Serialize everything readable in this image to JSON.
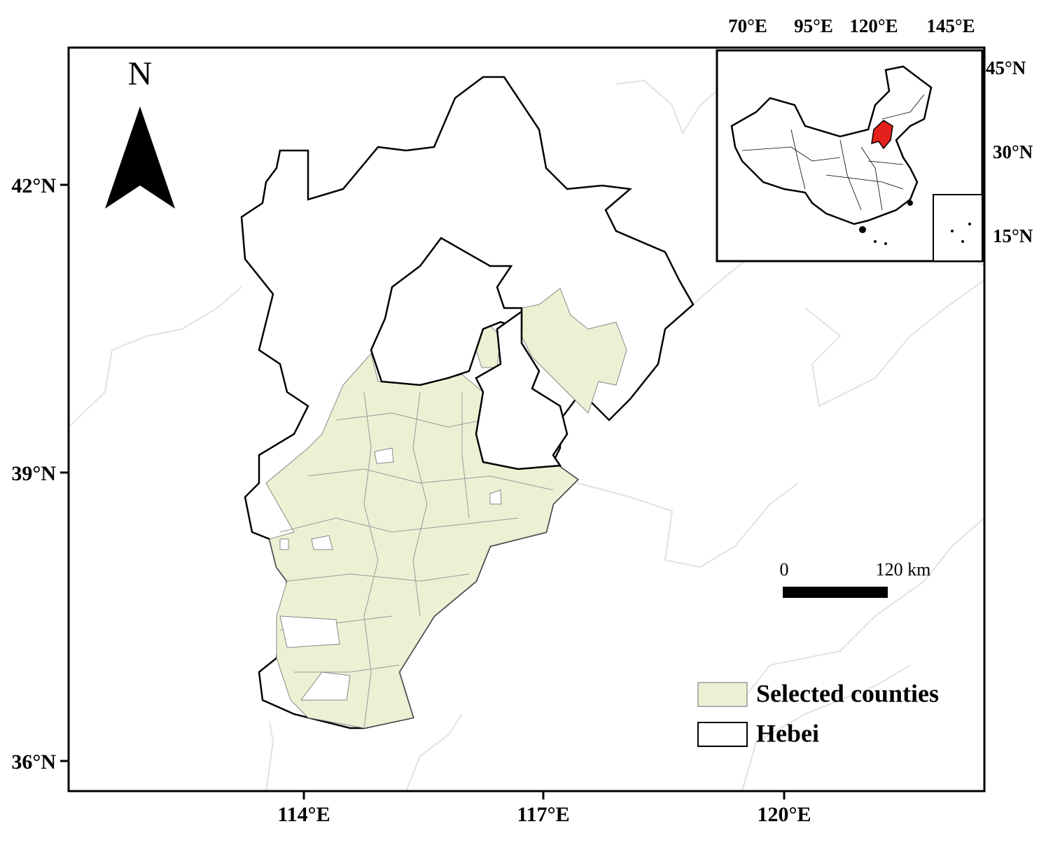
{
  "north_arrow": {
    "label": "N"
  },
  "main_map": {
    "x_labels": [
      "114°E",
      "117°E",
      "120°E"
    ],
    "y_labels": [
      "42°N",
      "39°N",
      "36°N"
    ]
  },
  "inset": {
    "x_labels": [
      "70°E",
      "95°E",
      "120°E",
      "145°E"
    ],
    "y_labels": [
      "45°N",
      "30°N",
      "15°N"
    ]
  },
  "scale_bar": {
    "labels": [
      "0",
      "120 km"
    ]
  },
  "legend": {
    "items": [
      {
        "label": "Selected counties",
        "color": "#eef0d4"
      },
      {
        "label": "Hebei",
        "color": "#ffffff"
      }
    ]
  }
}
